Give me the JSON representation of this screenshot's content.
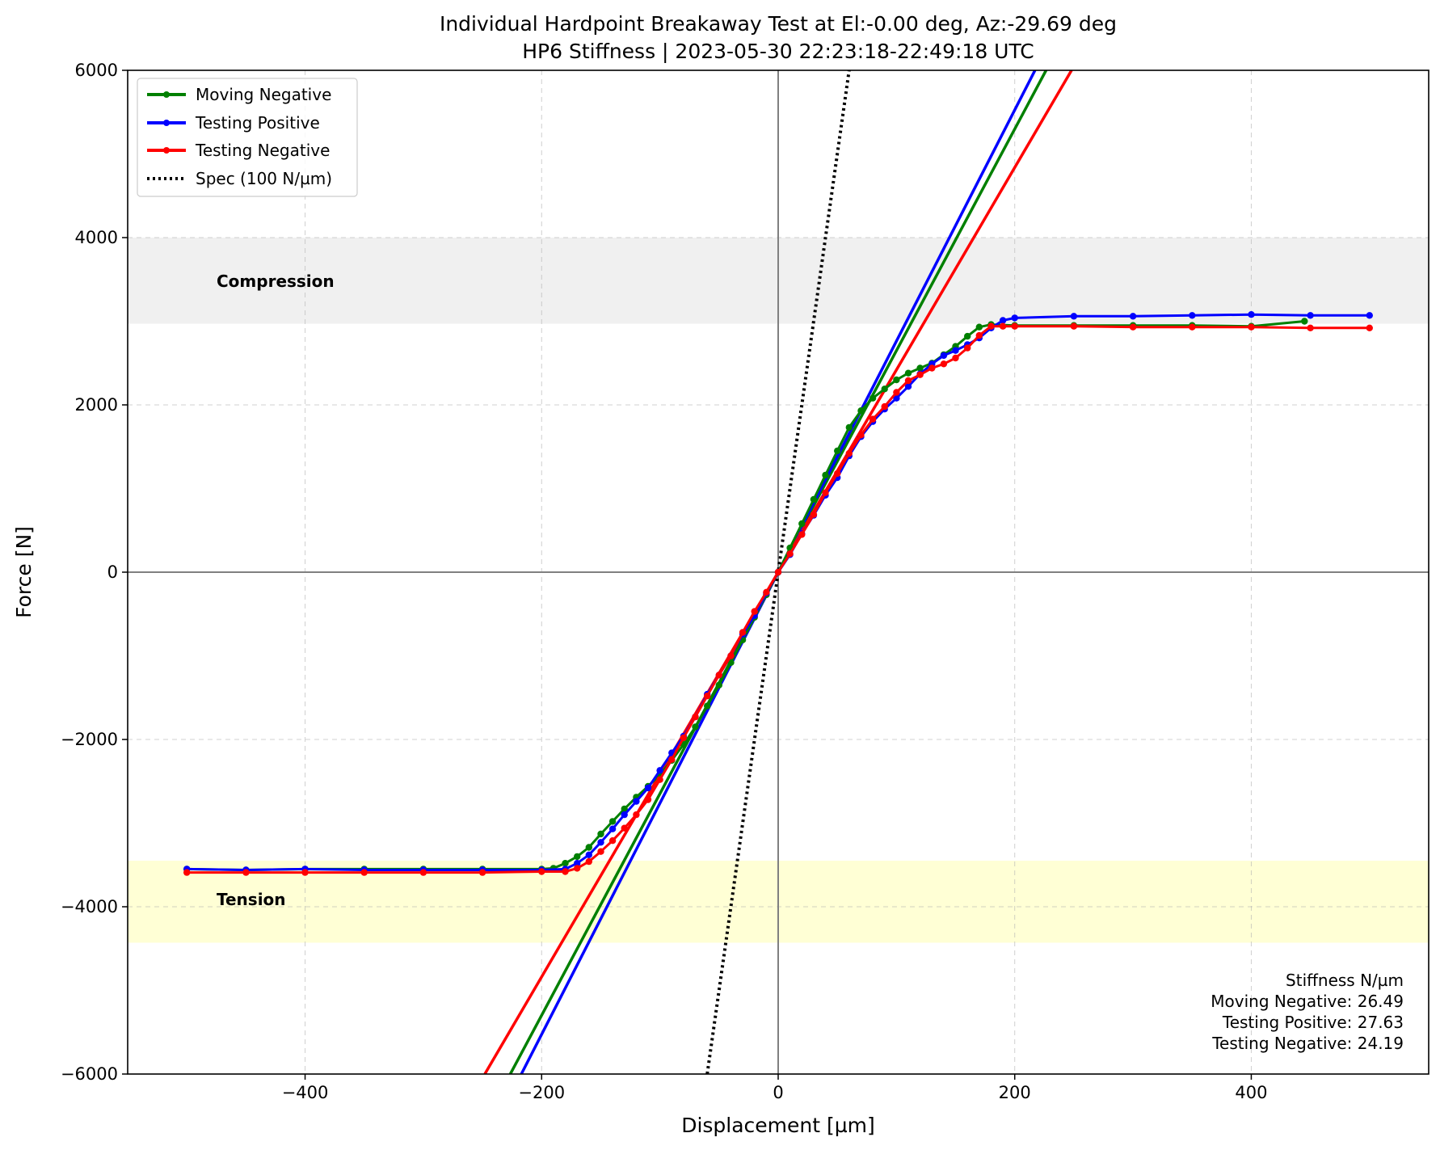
{
  "chart_data": {
    "type": "line",
    "title": "Individual Hardpoint Breakaway Test at El:-0.00 deg, Az:-29.69 deg",
    "subtitle": "HP6 Stiffness | 2023-05-30 22:23:18-22:49:18 UTC",
    "xlabel": "Displacement [µm]",
    "ylabel": "Force [N]",
    "xlim": [
      -550,
      550
    ],
    "ylim": [
      -6000,
      6000
    ],
    "xticks": [
      -400,
      -200,
      0,
      200,
      400
    ],
    "yticks": [
      -6000,
      -4000,
      -2000,
      0,
      2000,
      4000,
      6000
    ],
    "xtick_labels": [
      "−400",
      "−200",
      "0",
      "200",
      "400"
    ],
    "ytick_labels": [
      "−6000",
      "−4000",
      "−2000",
      "0",
      "2000",
      "4000",
      "6000"
    ],
    "grid": true,
    "legend_position": "upper-left",
    "bands": [
      {
        "label": "Compression",
        "ymin": 2970,
        "ymax": 4000,
        "color": "#f0f0f0"
      },
      {
        "label": "Tension",
        "ymin": -4430,
        "ymax": -3450,
        "color": "#ffffd5"
      }
    ],
    "series": [
      {
        "name": "Moving Negative",
        "color": "#008000",
        "points": [
          [
            445,
            3000
          ],
          [
            400,
            2940
          ],
          [
            350,
            2950
          ],
          [
            300,
            2950
          ],
          [
            250,
            2950
          ],
          [
            200,
            2950
          ],
          [
            180,
            2960
          ],
          [
            170,
            2930
          ],
          [
            160,
            2820
          ],
          [
            150,
            2700
          ],
          [
            140,
            2600
          ],
          [
            130,
            2500
          ],
          [
            120,
            2440
          ],
          [
            110,
            2380
          ],
          [
            100,
            2300
          ],
          [
            90,
            2190
          ],
          [
            80,
            2080
          ],
          [
            70,
            1930
          ],
          [
            60,
            1730
          ],
          [
            50,
            1450
          ],
          [
            40,
            1160
          ],
          [
            30,
            870
          ],
          [
            20,
            580
          ],
          [
            10,
            290
          ],
          [
            0,
            0
          ],
          [
            -10,
            -270
          ],
          [
            -20,
            -540
          ],
          [
            -30,
            -810
          ],
          [
            -40,
            -1080
          ],
          [
            -50,
            -1350
          ],
          [
            -60,
            -1600
          ],
          [
            -70,
            -1850
          ],
          [
            -80,
            -2060
          ],
          [
            -90,
            -2250
          ],
          [
            -100,
            -2420
          ],
          [
            -110,
            -2560
          ],
          [
            -120,
            -2690
          ],
          [
            -130,
            -2830
          ],
          [
            -140,
            -2980
          ],
          [
            -150,
            -3130
          ],
          [
            -160,
            -3290
          ],
          [
            -170,
            -3400
          ],
          [
            -180,
            -3480
          ],
          [
            -190,
            -3540
          ],
          [
            -200,
            -3550
          ],
          [
            -250,
            -3550
          ],
          [
            -300,
            -3550
          ],
          [
            -350,
            -3550
          ],
          [
            -400,
            -3550
          ],
          [
            -450,
            -3560
          ],
          [
            -500,
            -3550
          ]
        ]
      },
      {
        "name": "Testing Positive",
        "color": "#0000ff",
        "points": [
          [
            -500,
            -3550
          ],
          [
            -450,
            -3560
          ],
          [
            -400,
            -3550
          ],
          [
            -350,
            -3560
          ],
          [
            -300,
            -3560
          ],
          [
            -250,
            -3560
          ],
          [
            -200,
            -3560
          ],
          [
            -180,
            -3550
          ],
          [
            -170,
            -3480
          ],
          [
            -160,
            -3380
          ],
          [
            -150,
            -3230
          ],
          [
            -140,
            -3070
          ],
          [
            -130,
            -2900
          ],
          [
            -120,
            -2740
          ],
          [
            -110,
            -2580
          ],
          [
            -100,
            -2370
          ],
          [
            -90,
            -2160
          ],
          [
            -80,
            -1960
          ],
          [
            -70,
            -1730
          ],
          [
            -60,
            -1460
          ],
          [
            -50,
            -1230
          ],
          [
            -40,
            -1000
          ],
          [
            -30,
            -740
          ],
          [
            -20,
            -520
          ],
          [
            -10,
            -250
          ],
          [
            0,
            0
          ],
          [
            10,
            210
          ],
          [
            20,
            460
          ],
          [
            30,
            680
          ],
          [
            40,
            920
          ],
          [
            50,
            1130
          ],
          [
            60,
            1390
          ],
          [
            70,
            1620
          ],
          [
            80,
            1800
          ],
          [
            90,
            1950
          ],
          [
            100,
            2080
          ],
          [
            110,
            2220
          ],
          [
            120,
            2370
          ],
          [
            130,
            2490
          ],
          [
            140,
            2590
          ],
          [
            150,
            2650
          ],
          [
            160,
            2720
          ],
          [
            170,
            2800
          ],
          [
            180,
            2920
          ],
          [
            190,
            3010
          ],
          [
            200,
            3040
          ],
          [
            250,
            3060
          ],
          [
            300,
            3060
          ],
          [
            350,
            3070
          ],
          [
            400,
            3080
          ],
          [
            450,
            3070
          ],
          [
            500,
            3070
          ]
        ]
      },
      {
        "name": "Testing Negative",
        "color": "#ff0000",
        "points": [
          [
            500,
            2920
          ],
          [
            450,
            2920
          ],
          [
            400,
            2930
          ],
          [
            350,
            2930
          ],
          [
            300,
            2930
          ],
          [
            250,
            2940
          ],
          [
            200,
            2940
          ],
          [
            190,
            2940
          ],
          [
            180,
            2940
          ],
          [
            170,
            2830
          ],
          [
            160,
            2680
          ],
          [
            150,
            2560
          ],
          [
            140,
            2490
          ],
          [
            130,
            2440
          ],
          [
            120,
            2360
          ],
          [
            110,
            2290
          ],
          [
            100,
            2150
          ],
          [
            90,
            1980
          ],
          [
            80,
            1830
          ],
          [
            70,
            1640
          ],
          [
            60,
            1420
          ],
          [
            50,
            1180
          ],
          [
            40,
            950
          ],
          [
            30,
            690
          ],
          [
            20,
            450
          ],
          [
            10,
            220
          ],
          [
            0,
            0
          ],
          [
            -10,
            -240
          ],
          [
            -20,
            -470
          ],
          [
            -30,
            -720
          ],
          [
            -40,
            -1000
          ],
          [
            -50,
            -1230
          ],
          [
            -60,
            -1480
          ],
          [
            -70,
            -1730
          ],
          [
            -80,
            -1980
          ],
          [
            -90,
            -2240
          ],
          [
            -100,
            -2480
          ],
          [
            -110,
            -2720
          ],
          [
            -120,
            -2900
          ],
          [
            -130,
            -3060
          ],
          [
            -140,
            -3210
          ],
          [
            -150,
            -3340
          ],
          [
            -160,
            -3460
          ],
          [
            -170,
            -3540
          ],
          [
            -180,
            -3580
          ],
          [
            -200,
            -3580
          ],
          [
            -250,
            -3590
          ],
          [
            -300,
            -3590
          ],
          [
            -350,
            -3590
          ],
          [
            -400,
            -3590
          ],
          [
            -450,
            -3590
          ],
          [
            -500,
            -3590
          ]
        ]
      }
    ],
    "fit_lines": [
      {
        "series": "Moving Negative",
        "slope": 26.49,
        "color": "#008000"
      },
      {
        "series": "Testing Positive",
        "slope": 27.63,
        "color": "#0000ff"
      },
      {
        "series": "Testing Negative",
        "slope": 24.19,
        "color": "#ff0000"
      }
    ],
    "spec_line": {
      "label": "Spec (100 N/µm)",
      "slope": 100,
      "color": "#000000",
      "style": "dotted"
    },
    "stats_box": {
      "title": "Stiffness N/µm",
      "lines": [
        "Moving Negative: 26.49",
        "Testing Positive: 27.63",
        "Testing Negative: 24.19"
      ]
    }
  }
}
